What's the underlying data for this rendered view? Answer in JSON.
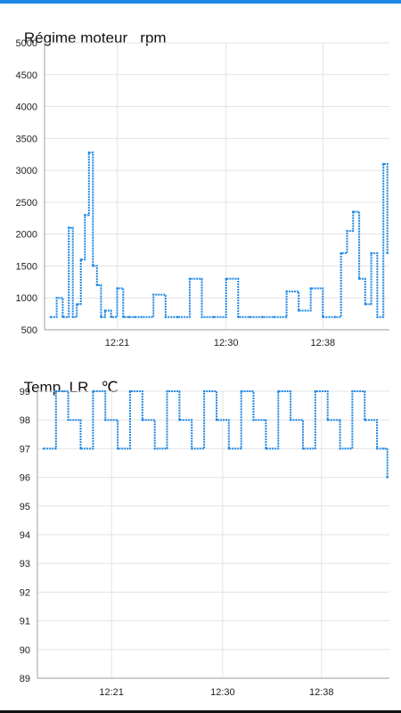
{
  "accent_color": "#1e88e5",
  "charts": [
    {
      "title": "Régime moteur",
      "unit": "rpm"
    },
    {
      "title": "Temp. LR",
      "unit": "℃"
    }
  ],
  "chart_data": [
    {
      "type": "line",
      "title": "Régime moteur   rpm",
      "ylabel": "rpm",
      "xlabel": "",
      "ylim": [
        500,
        5000
      ],
      "y_ticks": [
        "5000",
        "4500",
        "4000",
        "3500",
        "3000",
        "2500",
        "2000",
        "1500",
        "1000",
        "500"
      ],
      "x_ticks": [
        "12:21",
        "12:30",
        "12:38"
      ],
      "grid": true,
      "series": [
        {
          "x": [
            "12:15:30",
            "12:16:00",
            "12:16:30",
            "12:17:00",
            "12:17:20",
            "12:17:40",
            "12:18:00",
            "12:18:20",
            "12:18:40",
            "12:19:00",
            "12:19:20",
            "12:19:40",
            "12:20:00",
            "12:20:30",
            "12:21:00",
            "12:21:30",
            "12:22:00",
            "12:22:30",
            "12:23:00",
            "12:24:00",
            "12:25:00",
            "12:26:00",
            "12:27:00",
            "12:28:00",
            "12:29:00",
            "12:30:00",
            "12:31:00",
            "12:32:00",
            "12:33:00",
            "12:34:00",
            "12:35:00",
            "12:36:00",
            "12:37:00",
            "12:38:00",
            "12:39:00",
            "12:39:30",
            "12:40:00",
            "12:40:30",
            "12:41:00",
            "12:41:30",
            "12:42:00",
            "12:42:30",
            "12:43:00",
            "12:43:20"
          ],
          "y": [
            700,
            1000,
            700,
            2100,
            700,
            900,
            1600,
            2300,
            3280,
            1500,
            1200,
            700,
            800,
            700,
            1150,
            700,
            700,
            700,
            700,
            1050,
            700,
            700,
            1300,
            700,
            700,
            1300,
            700,
            700,
            700,
            700,
            1100,
            800,
            1150,
            700,
            700,
            1700,
            2050,
            2350,
            1300,
            900,
            1700,
            700,
            3100,
            1700
          ]
        }
      ]
    },
    {
      "type": "line",
      "title": "Temp. LR   ℃",
      "ylabel": "℃",
      "xlabel": "",
      "ylim": [
        89,
        99
      ],
      "y_ticks": [
        "99",
        "98",
        "97",
        "96",
        "95",
        "94",
        "93",
        "92",
        "91",
        "90",
        "89"
      ],
      "x_ticks": [
        "12:21",
        "12:30",
        "12:38"
      ],
      "grid": true,
      "series": [
        {
          "x": [
            "12:15:30",
            "12:16:30",
            "12:17:30",
            "12:18:30",
            "12:19:30",
            "12:20:30",
            "12:21:30",
            "12:22:30",
            "12:23:30",
            "12:24:30",
            "12:25:30",
            "12:26:30",
            "12:27:30",
            "12:28:30",
            "12:29:30",
            "12:30:30",
            "12:31:30",
            "12:32:30",
            "12:33:30",
            "12:34:30",
            "12:35:30",
            "12:36:30",
            "12:37:30",
            "12:38:30",
            "12:39:30",
            "12:40:30",
            "12:41:30",
            "12:42:30",
            "12:43:00",
            "12:43:20"
          ],
          "y": [
            97,
            99,
            98,
            97,
            99,
            98,
            97,
            99,
            98,
            97,
            99,
            98,
            97,
            99,
            98,
            97,
            99,
            98,
            97,
            99,
            98,
            97,
            99,
            98,
            97,
            99,
            98,
            97,
            97,
            96
          ]
        }
      ]
    }
  ]
}
